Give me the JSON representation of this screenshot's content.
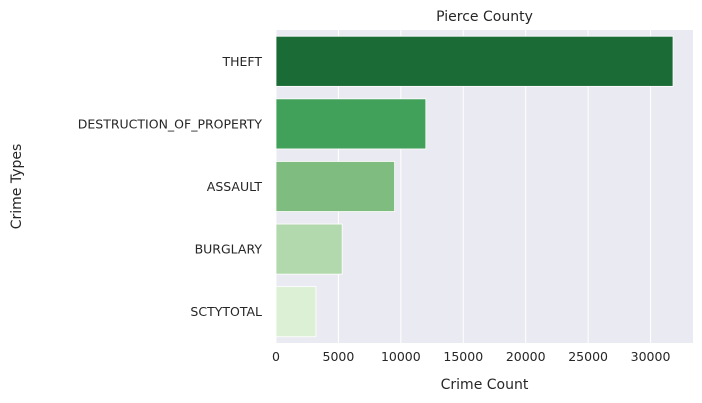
{
  "chart_data": {
    "type": "bar",
    "orientation": "horizontal",
    "title": "Pierce County",
    "xlabel": "Crime Count",
    "ylabel": "Crime Types",
    "categories": [
      "THEFT",
      "DESTRUCTION_OF_PROPERTY",
      "ASSAULT",
      "BURGLARY",
      "SCTYTOTAL"
    ],
    "values": [
      31800,
      12000,
      9500,
      5300,
      3200
    ],
    "bar_colors": [
      "#1a6b35",
      "#41a059",
      "#7fbc7f",
      "#b2d9ad",
      "#dcf0d6"
    ],
    "xlim": [
      0,
      33400
    ],
    "xticks": [
      0,
      5000,
      10000,
      15000,
      20000,
      25000,
      30000
    ],
    "grid": true,
    "background": "#eaeaf2"
  }
}
